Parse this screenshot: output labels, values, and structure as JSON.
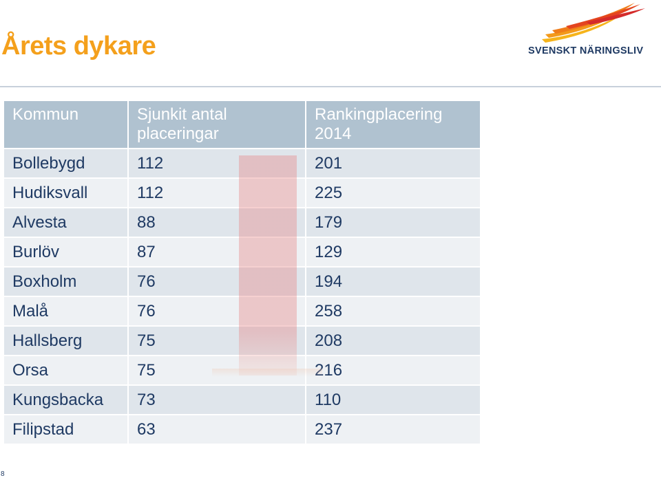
{
  "title": "Årets dykare",
  "logo": {
    "text": "SVENSKT NÄRINGSLIV"
  },
  "table": {
    "headers": [
      "Kommun",
      "Sjunkit antal placeringar",
      "Rankingplacering 2014"
    ],
    "rows": [
      [
        "Bollebygd",
        "112",
        "201"
      ],
      [
        "Hudiksvall",
        "112",
        "225"
      ],
      [
        "Alvesta",
        "88",
        "179"
      ],
      [
        "Burlöv",
        "87",
        "129"
      ],
      [
        "Boxholm",
        "76",
        "194"
      ],
      [
        "Malå",
        "76",
        "258"
      ],
      [
        "Hallsberg",
        "75",
        "208"
      ],
      [
        "Orsa",
        "75",
        "216"
      ],
      [
        "Kungsbacka",
        "73",
        "110"
      ],
      [
        "Filipstad",
        "63",
        "237"
      ]
    ],
    "highlighted_row": "Burlöv"
  },
  "page_number": "8",
  "colors": {
    "title": "#f4a01c",
    "header_bg": "#b0c2d0",
    "text": "#1f3a63",
    "highlight_text": "#6b1313"
  }
}
